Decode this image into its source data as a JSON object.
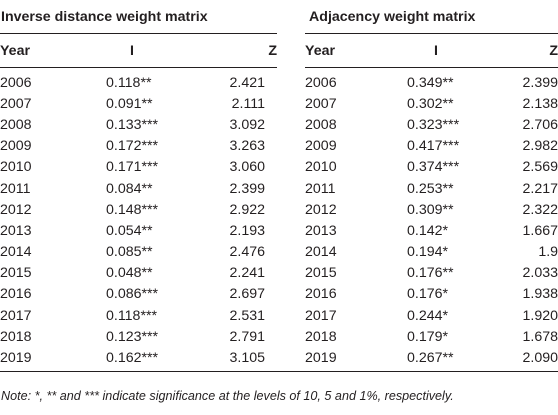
{
  "table": {
    "group_left": "Inverse distance weight matrix",
    "group_right": "Adjacency weight matrix",
    "headers": {
      "year": "Year",
      "i": "I",
      "z": "Z"
    },
    "rows": [
      {
        "year": "2006",
        "i1": "0.118**",
        "z1": "2.421",
        "year2": "2006",
        "i2": "0.349**",
        "z2": "2.399"
      },
      {
        "year": "2007",
        "i1": "0.091**",
        "z1": "2.111",
        "year2": "2007",
        "i2": "0.302**",
        "z2": "2.138"
      },
      {
        "year": "2008",
        "i1": "0.133***",
        "z1": "3.092",
        "year2": "2008",
        "i2": "0.323***",
        "z2": "2.706"
      },
      {
        "year": "2009",
        "i1": "0.172***",
        "z1": "3.263",
        "year2": "2009",
        "i2": "0.417***",
        "z2": "2.982"
      },
      {
        "year": "2010",
        "i1": "0.171***",
        "z1": "3.060",
        "year2": "2010",
        "i2": "0.374***",
        "z2": "2.569"
      },
      {
        "year": "2011",
        "i1": "0.084**",
        "z1": "2.399",
        "year2": "2011",
        "i2": "0.253**",
        "z2": "2.217"
      },
      {
        "year": "2012",
        "i1": "0.148***",
        "z1": "2.922",
        "year2": "2012",
        "i2": "0.309**",
        "z2": "2.322"
      },
      {
        "year": "2013",
        "i1": "0.054**",
        "z1": "2.193",
        "year2": "2013",
        "i2": "0.142*",
        "z2": "1.667"
      },
      {
        "year": "2014",
        "i1": "0.085**",
        "z1": "2.476",
        "year2": "2014",
        "i2": "0.194*",
        "z2": "1.9"
      },
      {
        "year": "2015",
        "i1": "0.048**",
        "z1": "2.241",
        "year2": "2015",
        "i2": "0.176**",
        "z2": "2.033"
      },
      {
        "year": "2016",
        "i1": "0.086***",
        "z1": "2.697",
        "year2": "2016",
        "i2": "0.176*",
        "z2": "1.938"
      },
      {
        "year": "2017",
        "i1": "0.118***",
        "z1": "2.531",
        "year2": "2017",
        "i2": "0.244*",
        "z2": "1.920"
      },
      {
        "year": "2018",
        "i1": "0.123***",
        "z1": "2.791",
        "year2": "2018",
        "i2": "0.179*",
        "z2": "1.678"
      },
      {
        "year": "2019",
        "i1": "0.162***",
        "z1": "3.105",
        "year2": "2019",
        "i2": "0.267**",
        "z2": "2.090"
      }
    ]
  },
  "note": "Note: *, ** and *** indicate significance at the levels of 10, 5 and 1%, respectively."
}
